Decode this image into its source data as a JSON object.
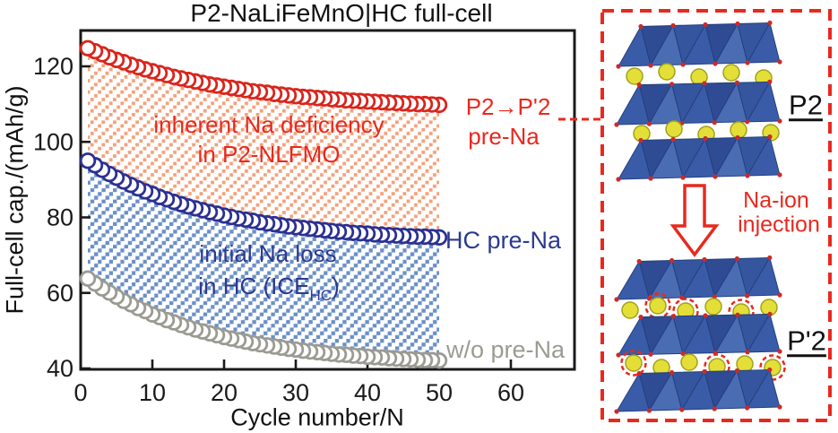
{
  "title": "P2-NaLiFeMnO|HC full-cell",
  "chart_data": {
    "type": "scatter",
    "title": "P2-NaLiFeMnO|HC full-cell",
    "xlabel": "Cycle number/N",
    "ylabel": "Full-cell cap./(mAh/g)",
    "xlim": [
      0,
      69
    ],
    "ylim": [
      40,
      128.5
    ],
    "xticks": [
      0,
      10,
      20,
      30,
      40,
      50,
      60
    ],
    "yticks": [
      40,
      60,
      80,
      100,
      120
    ],
    "grid": false,
    "legend_position": "inline-right",
    "marker": "open-circle",
    "x": [
      1,
      2,
      3,
      4,
      5,
      6,
      7,
      8,
      9,
      10,
      11,
      12,
      13,
      14,
      15,
      16,
      17,
      18,
      19,
      20,
      21,
      22,
      23,
      24,
      25,
      26,
      27,
      28,
      29,
      30,
      31,
      32,
      33,
      34,
      35,
      36,
      37,
      38,
      39,
      40,
      41,
      42,
      43,
      44,
      45,
      46,
      47,
      48,
      49,
      50
    ],
    "series": [
      {
        "name": "P2→P'2 pre-Na",
        "color": "#d9251c",
        "values": [
          124.8,
          124.0,
          123.2,
          122.4,
          121.7,
          121.1,
          120.4,
          119.8,
          119.2,
          118.7,
          118.2,
          117.7,
          117.2,
          116.8,
          116.4,
          116.0,
          115.6,
          115.2,
          114.9,
          114.6,
          114.3,
          114.0,
          113.7,
          113.4,
          113.2,
          113.0,
          112.7,
          112.5,
          112.3,
          112.1,
          111.9,
          111.8,
          111.6,
          111.5,
          111.3,
          111.2,
          111.0,
          110.9,
          110.8,
          110.7,
          110.6,
          110.5,
          110.4,
          110.3,
          110.2,
          110.1,
          110.0,
          110.0,
          109.9,
          109.8
        ]
      },
      {
        "name": "HC pre-Na",
        "color": "#2b3092",
        "values": [
          95.0,
          93.8,
          92.6,
          91.5,
          90.5,
          89.5,
          88.6,
          87.7,
          86.9,
          86.2,
          85.4,
          84.8,
          84.1,
          83.5,
          82.9,
          82.4,
          81.9,
          81.4,
          81.0,
          80.5,
          80.1,
          79.7,
          79.4,
          79.1,
          78.7,
          78.4,
          78.2,
          77.9,
          77.6,
          77.4,
          77.2,
          77.0,
          76.8,
          76.6,
          76.4,
          76.2,
          76.1,
          75.9,
          75.8,
          75.7,
          75.5,
          75.4,
          75.3,
          75.2,
          75.1,
          75.0,
          74.9,
          74.9,
          74.8,
          74.7
        ]
      },
      {
        "name": "w/o pre-Na",
        "color": "#9b9b93",
        "values": [
          63.8,
          62.5,
          61.2,
          60.1,
          59.0,
          57.9,
          57.0,
          56.0,
          55.2,
          54.3,
          53.6,
          52.8,
          52.2,
          51.5,
          50.9,
          50.3,
          49.8,
          49.3,
          48.8,
          48.3,
          47.9,
          47.5,
          47.1,
          46.7,
          46.4,
          46.1,
          45.8,
          45.5,
          45.2,
          45.0,
          44.7,
          44.5,
          44.3,
          44.1,
          43.9,
          43.7,
          43.6,
          43.4,
          43.3,
          43.1,
          43.0,
          42.9,
          42.7,
          42.6,
          42.5,
          42.4,
          42.3,
          42.2,
          42.2,
          42.1
        ]
      }
    ],
    "regions": [
      {
        "label_line1": "inherent Na deficiency",
        "label_line2": "in P2-NLFMO",
        "between_series": [
          0,
          1
        ],
        "hatch_color": "#f2a27d",
        "hatch_style": "diagonal-dotted"
      },
      {
        "label_line1": "initial Na loss",
        "label_line2_pre": "in HC (ICE",
        "label_line2_sub": "HC",
        "label_line2_post": ")",
        "between_series": [
          1,
          2
        ],
        "hatch_color": "#6b90c8",
        "hatch_style": "diagonal-dotted"
      }
    ]
  },
  "annotations": {
    "red_series_label_line1": "P2→P'2",
    "red_series_label_line2": "pre-Na",
    "blue_series_label": "HC pre-Na",
    "gray_series_label": "w/o pre-Na"
  },
  "panel": {
    "p2_label": "P2",
    "pp2_label": "P'2",
    "arrow_caption_line1": "Na-ion",
    "arrow_caption_line2": "injection",
    "border_color": "#e8291f"
  },
  "colors": {
    "series_red": "#d9251c",
    "series_navy": "#2b3092",
    "series_gray": "#9b9b93",
    "text_red": "#e8291f",
    "text_navy": "#2b3a8f",
    "axis_black": "#1a1a1a",
    "hatch_orange": "#f2a27d",
    "hatch_blue": "#6b90c8",
    "slab_blue": "#3a5ca8",
    "sphere_yellow": "#e3df38"
  }
}
